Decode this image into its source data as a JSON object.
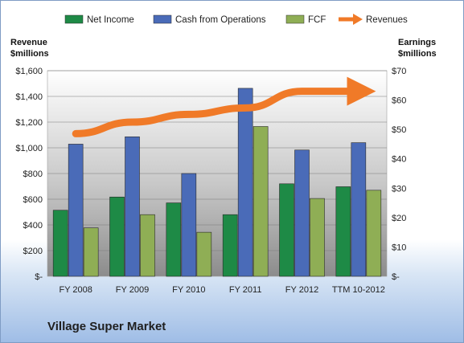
{
  "chart_data": {
    "type": "bar",
    "categories": [
      "FY 2008",
      "FY 2009",
      "FY 2010",
      "FY 2011",
      "FY 2012",
      "TTM 10-2012"
    ],
    "series": [
      {
        "name": "Net Income",
        "axis": "right",
        "color": "#1e8a46",
        "values": [
          22.5,
          27,
          25,
          21,
          31.5,
          30.5
        ]
      },
      {
        "name": "Cash from Operations",
        "axis": "right",
        "color": "#4a6bb8",
        "values": [
          45,
          47.5,
          35,
          64,
          43,
          45.5
        ]
      },
      {
        "name": "FCF",
        "axis": "right",
        "color": "#8fae55",
        "values": [
          16.5,
          21,
          15,
          51,
          26.5,
          29.3
        ]
      },
      {
        "name": "Revenues",
        "type": "line",
        "axis": "left",
        "color": "#f07a28",
        "values": [
          1110,
          1200,
          1260,
          1310,
          1440,
          1440
        ]
      }
    ],
    "left_axis": {
      "label": "Revenue\n$millions",
      "ticks": [
        "$-",
        "$200",
        "$400",
        "$600",
        "$800",
        "$1,000",
        "$1,200",
        "$1,400",
        "$1,600"
      ],
      "ylim": [
        0,
        1600
      ]
    },
    "right_axis": {
      "label": "Earnings\n$millions",
      "ticks": [
        "$-",
        "$10",
        "$20",
        "$30",
        "$40",
        "$50",
        "$60",
        "$70"
      ],
      "ylim": [
        0,
        70
      ]
    },
    "grid": true,
    "legend": "top",
    "subtitle": "Village Super Market"
  }
}
